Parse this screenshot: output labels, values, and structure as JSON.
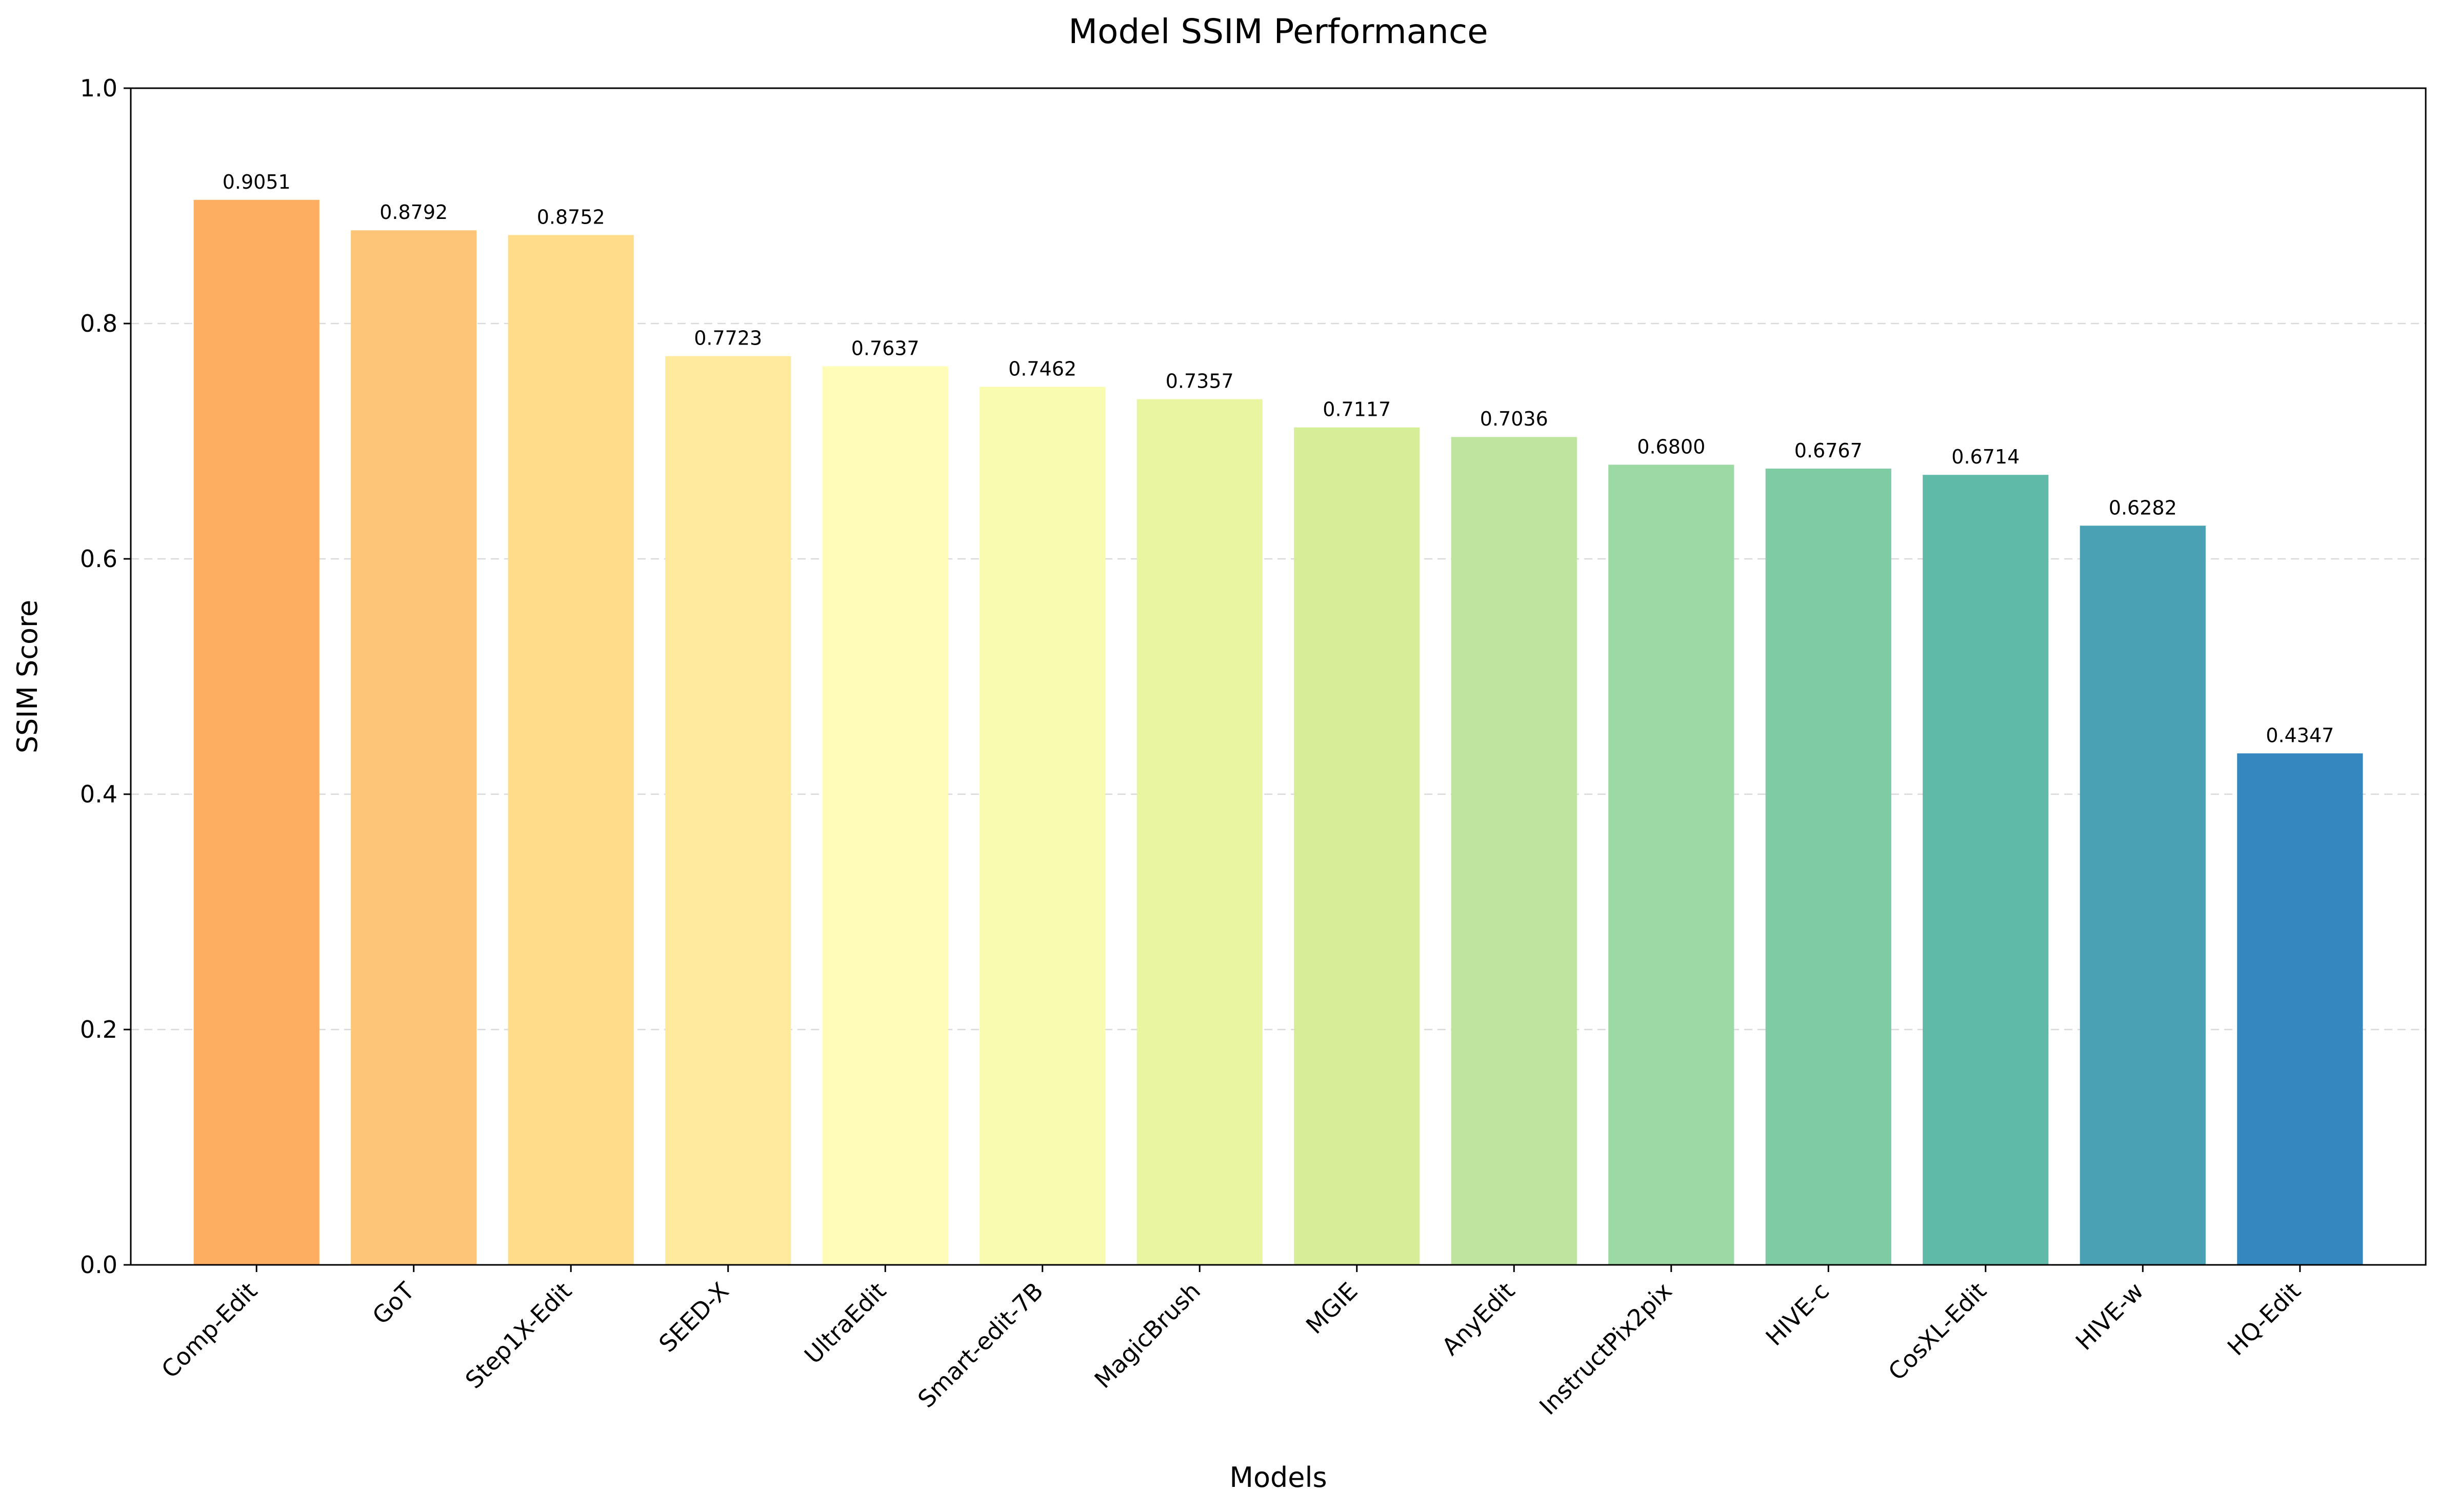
{
  "chart_data": {
    "type": "bar",
    "title": "Model SSIM Performance",
    "xlabel": "Models",
    "ylabel": "SSIM Score",
    "ylim": [
      0,
      1.0
    ],
    "yticks": [
      "0.0",
      "0.2",
      "0.4",
      "0.6",
      "0.8",
      "1.0"
    ],
    "grid": "horizontal dashed",
    "categories": [
      "Comp-Edit",
      "GoT",
      "Step1X-Edit",
      "SEED-X",
      "UltraEdit",
      "Smart-edit-7B",
      "MagicBrush",
      "MGIE",
      "AnyEdit",
      "InstructPix2pix",
      "HIVE-c",
      "CosXL-Edit",
      "HIVE-w",
      "HQ-Edit"
    ],
    "values": [
      0.9051,
      0.8792,
      0.8752,
      0.7723,
      0.7637,
      0.7462,
      0.7357,
      0.7117,
      0.7036,
      0.68,
      0.6767,
      0.6714,
      0.6282,
      0.4347
    ],
    "value_labels": [
      "0.9051",
      "0.8792",
      "0.8752",
      "0.7723",
      "0.7637",
      "0.7462",
      "0.7357",
      "0.7117",
      "0.7036",
      "0.6800",
      "0.6767",
      "0.6714",
      "0.6282",
      "0.4347"
    ],
    "colors": [
      "#fdae61",
      "#fdc578",
      "#fedc8a",
      "#fee99d",
      "#fffbb8",
      "#f8fbb0",
      "#e9f5a0",
      "#d6ee97",
      "#bfe4a0",
      "#9dd9a4",
      "#7fcba4",
      "#5fbaa8",
      "#4aa1b3",
      "#3587bf"
    ]
  }
}
